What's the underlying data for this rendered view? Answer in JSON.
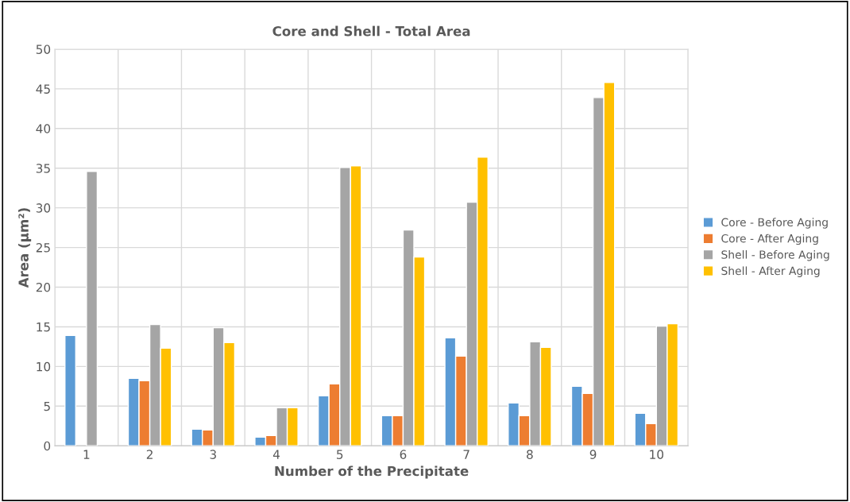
{
  "chart_data": {
    "type": "bar",
    "title": "Core and Shell - Total Area",
    "xlabel": "Number of the Precipitate",
    "ylabel": "Area (µm²)",
    "categories": [
      "1",
      "2",
      "3",
      "4",
      "5",
      "6",
      "7",
      "8",
      "9",
      "10"
    ],
    "series": [
      {
        "name": "Core - Before Aging",
        "color": "#5b9bd5",
        "values": [
          13.9,
          8.5,
          2.1,
          1.1,
          6.3,
          3.8,
          13.6,
          5.4,
          7.5,
          4.1
        ]
      },
      {
        "name": "Core - After Aging",
        "color": "#ed7d31",
        "values": [
          null,
          8.2,
          2.0,
          1.3,
          7.8,
          3.8,
          11.3,
          3.8,
          6.6,
          2.8
        ]
      },
      {
        "name": "Shell - Before Aging",
        "color": "#a5a5a5",
        "values": [
          34.6,
          15.3,
          14.9,
          4.8,
          35.1,
          27.2,
          30.7,
          13.1,
          43.9,
          15.1
        ]
      },
      {
        "name": "Shell - After Aging",
        "color": "#ffc000",
        "values": [
          null,
          12.3,
          13.0,
          4.8,
          35.3,
          23.8,
          36.4,
          12.4,
          45.8,
          15.4
        ]
      }
    ],
    "ylim": [
      0,
      50
    ],
    "yticks": [
      0,
      5,
      10,
      15,
      20,
      25,
      30,
      35,
      40,
      45,
      50
    ],
    "grid": true,
    "legend": "right"
  }
}
